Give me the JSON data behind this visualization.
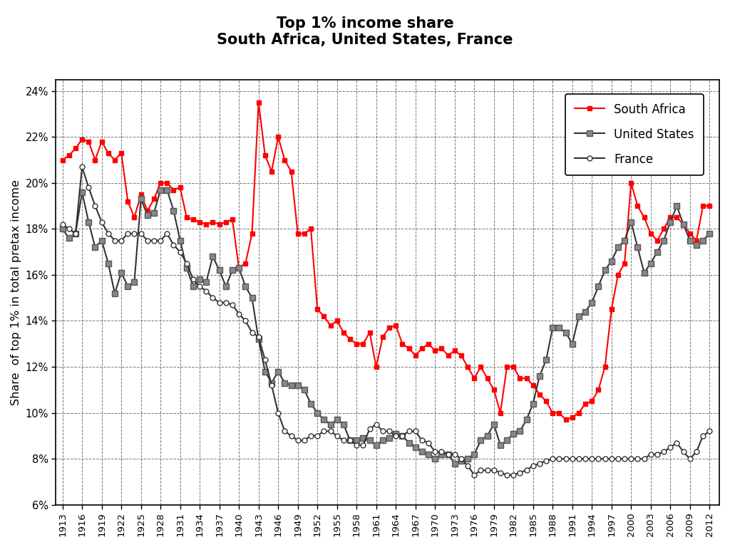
{
  "title_line1": "Top 1% income share",
  "title_line2": "South Africa, United States, France",
  "ylabel": "Share  of top 1% in total pretax income",
  "ylim": [
    0.06,
    0.245
  ],
  "yticks": [
    0.06,
    0.08,
    0.1,
    0.12,
    0.14,
    0.16,
    0.18,
    0.2,
    0.22,
    0.24
  ],
  "south_africa": {
    "years": [
      1913,
      1914,
      1915,
      1916,
      1917,
      1918,
      1919,
      1920,
      1921,
      1922,
      1923,
      1924,
      1925,
      1926,
      1927,
      1928,
      1929,
      1930,
      1931,
      1932,
      1933,
      1934,
      1935,
      1936,
      1937,
      1938,
      1939,
      1940,
      1941,
      1942,
      1943,
      1944,
      1945,
      1946,
      1947,
      1948,
      1949,
      1950,
      1951,
      1952,
      1953,
      1954,
      1955,
      1956,
      1957,
      1958,
      1959,
      1960,
      1961,
      1962,
      1963,
      1964,
      1965,
      1966,
      1967,
      1968,
      1969,
      1970,
      1971,
      1972,
      1973,
      1974,
      1975,
      1976,
      1977,
      1978,
      1979,
      1980,
      1981,
      1982,
      1983,
      1984,
      1985,
      1986,
      1987,
      1988,
      1989,
      1990,
      1991,
      1992,
      1993,
      1994,
      1995,
      1996,
      1997,
      1998,
      1999,
      2000,
      2001,
      2002,
      2003,
      2004,
      2005,
      2006,
      2007,
      2008,
      2009,
      2010,
      2011,
      2012
    ],
    "values": [
      0.21,
      0.212,
      0.215,
      0.219,
      0.218,
      0.21,
      0.218,
      0.213,
      0.21,
      0.213,
      0.192,
      0.185,
      0.195,
      0.188,
      0.193,
      0.2,
      0.2,
      0.197,
      0.198,
      0.185,
      0.184,
      0.183,
      0.182,
      0.183,
      0.182,
      0.183,
      0.184,
      0.163,
      0.165,
      0.178,
      0.235,
      0.212,
      0.205,
      0.22,
      0.21,
      0.205,
      0.178,
      0.178,
      0.18,
      0.145,
      0.142,
      0.138,
      0.14,
      0.135,
      0.132,
      0.13,
      0.13,
      0.135,
      0.12,
      0.133,
      0.137,
      0.138,
      0.13,
      0.128,
      0.125,
      0.128,
      0.13,
      0.127,
      0.128,
      0.125,
      0.127,
      0.125,
      0.12,
      0.115,
      0.12,
      0.115,
      0.11,
      0.1,
      0.12,
      0.12,
      0.115,
      0.115,
      0.112,
      0.108,
      0.105,
      0.1,
      0.1,
      0.097,
      0.098,
      0.1,
      0.104,
      0.105,
      0.11,
      0.12,
      0.145,
      0.16,
      0.165,
      0.2,
      0.19,
      0.185,
      0.178,
      0.175,
      0.18,
      0.185,
      0.185,
      0.182,
      0.178,
      0.175,
      0.19,
      0.19
    ]
  },
  "united_states": {
    "years": [
      1913,
      1914,
      1915,
      1916,
      1917,
      1918,
      1919,
      1920,
      1921,
      1922,
      1923,
      1924,
      1925,
      1926,
      1927,
      1928,
      1929,
      1930,
      1931,
      1932,
      1933,
      1934,
      1935,
      1936,
      1937,
      1938,
      1939,
      1940,
      1941,
      1942,
      1943,
      1944,
      1945,
      1946,
      1947,
      1948,
      1949,
      1950,
      1951,
      1952,
      1953,
      1954,
      1955,
      1956,
      1957,
      1958,
      1959,
      1960,
      1961,
      1962,
      1963,
      1964,
      1965,
      1966,
      1967,
      1968,
      1969,
      1970,
      1971,
      1972,
      1973,
      1974,
      1975,
      1976,
      1977,
      1978,
      1979,
      1980,
      1981,
      1982,
      1983,
      1984,
      1985,
      1986,
      1987,
      1988,
      1989,
      1990,
      1991,
      1992,
      1993,
      1994,
      1995,
      1996,
      1997,
      1998,
      1999,
      2000,
      2001,
      2002,
      2003,
      2004,
      2005,
      2006,
      2007,
      2008,
      2009,
      2010,
      2011,
      2012
    ],
    "values": [
      0.18,
      0.176,
      0.178,
      0.196,
      0.183,
      0.172,
      0.175,
      0.165,
      0.152,
      0.161,
      0.155,
      0.157,
      0.193,
      0.186,
      0.187,
      0.197,
      0.197,
      0.188,
      0.175,
      0.163,
      0.155,
      0.158,
      0.157,
      0.168,
      0.162,
      0.155,
      0.162,
      0.163,
      0.155,
      0.15,
      0.132,
      0.118,
      0.113,
      0.118,
      0.113,
      0.112,
      0.112,
      0.11,
      0.104,
      0.1,
      0.097,
      0.095,
      0.097,
      0.095,
      0.088,
      0.088,
      0.089,
      0.088,
      0.086,
      0.088,
      0.089,
      0.091,
      0.09,
      0.087,
      0.085,
      0.083,
      0.082,
      0.08,
      0.082,
      0.082,
      0.078,
      0.079,
      0.08,
      0.082,
      0.088,
      0.09,
      0.095,
      0.086,
      0.088,
      0.091,
      0.092,
      0.097,
      0.104,
      0.116,
      0.123,
      0.137,
      0.137,
      0.135,
      0.13,
      0.142,
      0.144,
      0.148,
      0.155,
      0.162,
      0.166,
      0.172,
      0.175,
      0.183,
      0.172,
      0.161,
      0.165,
      0.17,
      0.175,
      0.183,
      0.19,
      0.182,
      0.175,
      0.173,
      0.175,
      0.178
    ]
  },
  "france": {
    "years": [
      1913,
      1914,
      1915,
      1916,
      1917,
      1918,
      1919,
      1920,
      1921,
      1922,
      1923,
      1924,
      1925,
      1926,
      1927,
      1928,
      1929,
      1930,
      1931,
      1932,
      1933,
      1934,
      1935,
      1936,
      1937,
      1938,
      1939,
      1940,
      1941,
      1942,
      1943,
      1944,
      1945,
      1946,
      1947,
      1948,
      1949,
      1950,
      1951,
      1952,
      1953,
      1954,
      1955,
      1956,
      1957,
      1958,
      1959,
      1960,
      1961,
      1962,
      1963,
      1964,
      1965,
      1966,
      1967,
      1968,
      1969,
      1970,
      1971,
      1972,
      1973,
      1974,
      1975,
      1976,
      1977,
      1978,
      1979,
      1980,
      1981,
      1982,
      1983,
      1984,
      1985,
      1986,
      1987,
      1988,
      1989,
      1990,
      1991,
      1992,
      1993,
      1994,
      1995,
      1996,
      1997,
      1998,
      1999,
      2000,
      2001,
      2002,
      2003,
      2004,
      2005,
      2006,
      2007,
      2008,
      2009,
      2010,
      2011,
      2012
    ],
    "values": [
      0.182,
      0.18,
      0.178,
      0.207,
      0.198,
      0.19,
      0.183,
      0.178,
      0.175,
      0.175,
      0.178,
      0.178,
      0.178,
      0.175,
      0.175,
      0.175,
      0.178,
      0.173,
      0.17,
      0.165,
      0.158,
      0.155,
      0.153,
      0.15,
      0.148,
      0.148,
      0.147,
      0.143,
      0.14,
      0.135,
      0.133,
      0.123,
      0.112,
      0.1,
      0.092,
      0.09,
      0.088,
      0.088,
      0.09,
      0.09,
      0.092,
      0.092,
      0.09,
      0.088,
      0.088,
      0.086,
      0.086,
      0.093,
      0.095,
      0.092,
      0.092,
      0.09,
      0.09,
      0.092,
      0.092,
      0.088,
      0.087,
      0.083,
      0.083,
      0.082,
      0.082,
      0.08,
      0.077,
      0.073,
      0.075,
      0.075,
      0.075,
      0.074,
      0.073,
      0.073,
      0.074,
      0.075,
      0.077,
      0.078,
      0.079,
      0.08,
      0.08,
      0.08,
      0.08,
      0.08,
      0.08,
      0.08,
      0.08,
      0.08,
      0.08,
      0.08,
      0.08,
      0.08,
      0.08,
      0.08,
      0.082,
      0.082,
      0.083,
      0.085,
      0.087,
      0.083,
      0.08,
      0.083,
      0.09,
      0.092
    ]
  },
  "sa_color": "#FF0000",
  "us_color": "#808080",
  "fr_color": "#000000",
  "background_color": "#FFFFFF",
  "xlim": [
    1912,
    2013.5
  ],
  "xtick_start": 1913,
  "xtick_end": 2013,
  "xtick_step": 3
}
